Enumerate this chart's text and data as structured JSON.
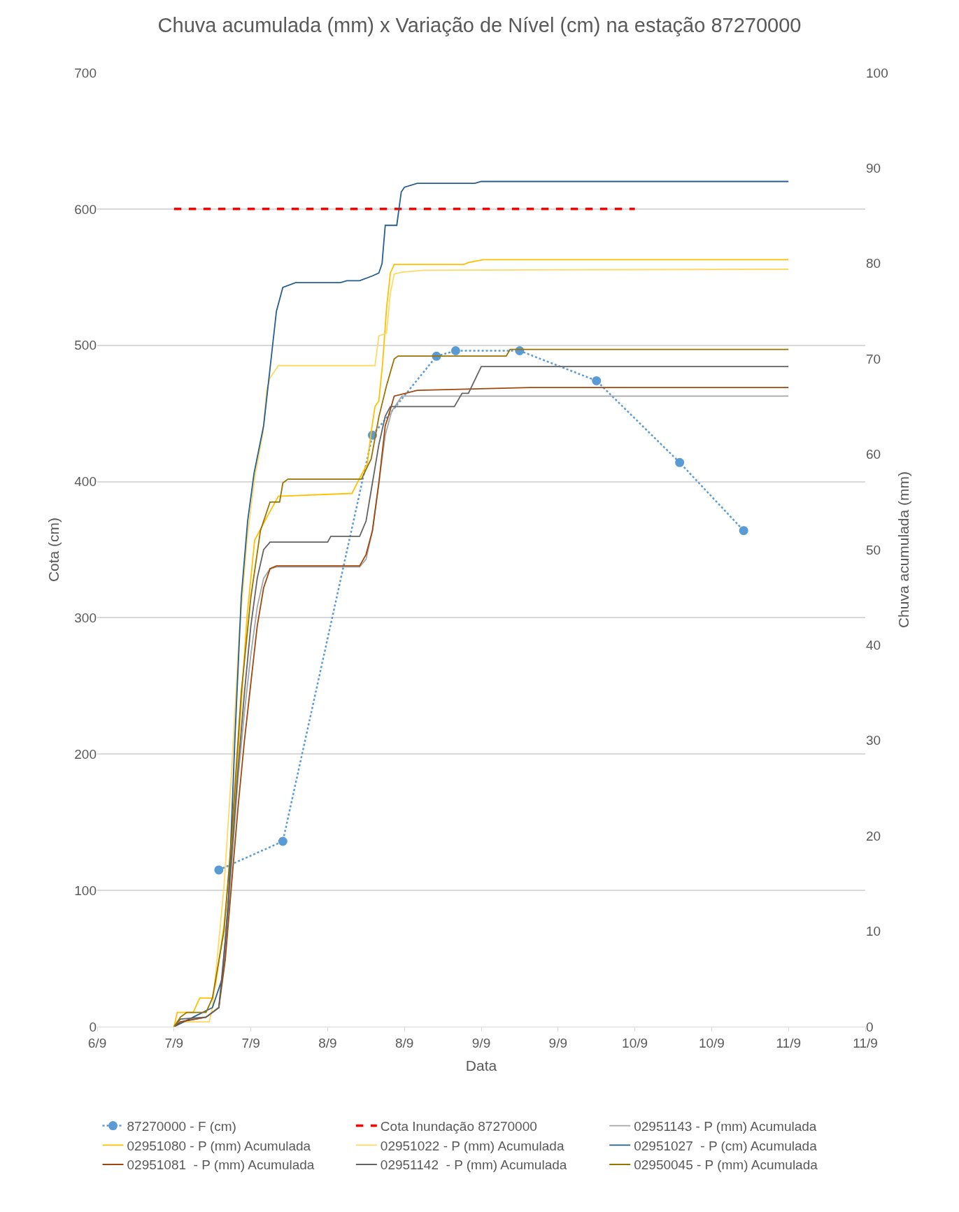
{
  "chart_data": {
    "type": "line",
    "title": "Chuva acumulada (mm) x Variação de Nível (cm) na estação 87270000",
    "xlabel": "Data",
    "ylabel": "Cota (cm)",
    "y2label": "Chuva acumulada (mm)",
    "xlim": [
      "--09-06T12:00",
      "--09-11T12:00"
    ],
    "xticks": [
      {
        "value": "--09-06T12:00",
        "label": "6/9"
      },
      {
        "value": "--09-07T00:00",
        "label": "7/9"
      },
      {
        "value": "--09-07T12:00",
        "label": "7/9"
      },
      {
        "value": "--09-08T00:00",
        "label": "8/9"
      },
      {
        "value": "--09-08T12:00",
        "label": "8/9"
      },
      {
        "value": "--09-09T00:00",
        "label": "9/9"
      },
      {
        "value": "--09-09T12:00",
        "label": "9/9"
      },
      {
        "value": "--09-10T00:00",
        "label": "10/9"
      },
      {
        "value": "--09-10T12:00",
        "label": "10/9"
      },
      {
        "value": "--09-11T00:00",
        "label": "11/9"
      },
      {
        "value": "--09-11T12:00",
        "label": "11/9"
      }
    ],
    "ylim": [
      0,
      700
    ],
    "yticks": [
      0,
      100,
      200,
      300,
      400,
      500,
      600,
      700
    ],
    "y2lim": [
      0,
      100
    ],
    "y2ticks": [
      0,
      10,
      20,
      30,
      40,
      50,
      60,
      70,
      80,
      90,
      100
    ],
    "grid": "y",
    "legend": "bottom",
    "series": [
      {
        "name": "87270000 - F (cm)",
        "color": "#5b9bd5",
        "line_style": "dotted",
        "marker": "circle",
        "x": [
          "--09-07T07:00",
          "--09-07T17:00",
          "--09-08T07:00",
          "--09-08T17:00",
          "--09-08T20:00",
          "--09-09T06:00",
          "--09-09T18:00",
          "--09-10T07:00",
          "--09-10T17:00"
        ],
        "values": [
          115,
          136,
          434,
          492,
          496,
          496,
          474,
          414,
          364
        ]
      },
      {
        "name": "Cota Inundação 87270000",
        "color": "#ff0000",
        "line_style": "dashed",
        "x": [
          "--09-07T00:00",
          "--09-10T00:00"
        ],
        "values": [
          600,
          600
        ]
      },
      {
        "name": "02951143 - P (mm) Acumulada",
        "color": "#a5a5a5",
        "axis": "y2",
        "x": [
          "--09-07T00:00",
          "--09-07T01:00",
          "--09-07T05:00",
          "--09-07T07:00",
          "--09-07T08:00",
          "--09-07T09:00",
          "--09-07T10:00",
          "--09-07T11:00",
          "--09-07T12:00",
          "--09-07T13:00",
          "--09-07T14:00",
          "--09-07T15:00",
          "--09-07T16:00",
          "--09-08T05:00",
          "--09-08T06:00",
          "--09-08T07:00",
          "--09-08T08:00",
          "--09-08T09:00",
          "--09-08T10:00",
          "--09-08T11:36",
          "--09-11T00:00"
        ],
        "values": [
          0,
          0.5,
          1,
          2,
          8,
          17,
          26,
          33,
          39,
          44,
          47,
          48,
          48.2,
          48.2,
          49,
          52,
          57,
          62,
          64.5,
          66.1,
          66.1
        ]
      },
      {
        "name": "02951080 - P (mm) Acumulada",
        "color": "#ffc000",
        "axis": "y2",
        "x": [
          "--09-07T00:00",
          "--09-07T00:30",
          "--09-07T03:00",
          "--09-07T04:00",
          "--09-07T06:00",
          "--09-07T06:30",
          "--09-07T07:48",
          "--09-07T09:00",
          "--09-07T10:12",
          "--09-07T11:24",
          "--09-07T12:36",
          "--09-07T14:30",
          "--09-07T16:18",
          "--09-08T03:48",
          "--09-08T05:00",
          "--09-08T06:12",
          "--09-08T06:48",
          "--09-08T07:24",
          "--09-08T08:00",
          "--09-08T08:36",
          "--09-08T09:12",
          "--09-08T09:48",
          "--09-08T10:24",
          "--09-08T21:18",
          "--09-08T22:00",
          "--09-09T00:18",
          "--09-11T00:00"
        ],
        "values": [
          0,
          1.5,
          1.5,
          3,
          3,
          4.5,
          10.6,
          18.7,
          30.8,
          43,
          51,
          53.4,
          55.6,
          55.9,
          57.5,
          59,
          62.3,
          65,
          65.6,
          69.6,
          75.3,
          79,
          79.9,
          79.9,
          80.1,
          80.4,
          80.4
        ]
      },
      {
        "name": "02951022 - P (mm) Acumulada",
        "color": "#ffd966",
        "axis": "y2",
        "x": [
          "--09-07T00:00",
          "--09-07T01:00",
          "--09-07T05:30",
          "--09-07T06:00",
          "--09-07T07:48",
          "--09-07T09:00",
          "--09-07T10:12",
          "--09-07T11:24",
          "--09-07T12:36",
          "--09-07T13:54",
          "--09-07T14:30",
          "--09-07T15:00",
          "--09-07T16:18",
          "--09-08T07:24",
          "--09-08T08:00",
          "--09-08T09:12",
          "--09-08T09:48",
          "--09-08T10:24",
          "--09-08T11:36",
          "--09-08T15:12",
          "--09-11T00:00"
        ],
        "values": [
          0,
          0.5,
          0.5,
          2,
          14.6,
          26.8,
          41.3,
          51,
          57.5,
          62.3,
          66.8,
          68,
          69.3,
          69.3,
          72.4,
          72.7,
          76.9,
          78.9,
          79.1,
          79.3,
          79.4
        ]
      },
      {
        "name": "02951027  - P (cm) Acumulada",
        "color": "#255e91",
        "axis": "y2",
        "x": [
          "--09-07T00:00",
          "--09-07T03:00",
          "--09-07T06:00",
          "--09-07T07:30",
          "--09-07T08:30",
          "--09-07T09:30",
          "--09-07T10:30",
          "--09-07T11:30",
          "--09-07T12:30",
          "--09-07T14:00",
          "--09-07T15:00",
          "--09-07T16:00",
          "--09-07T17:00",
          "--09-07T19:00",
          "--09-08T02:00",
          "--09-08T03:00",
          "--09-08T05:00",
          "--09-08T07:00",
          "--09-08T08:00",
          "--09-08T08:30",
          "--09-08T09:00",
          "--09-08T10:48",
          "--09-08T11:30",
          "--09-08T12:00",
          "--09-08T14:00",
          "--09-08T23:00",
          "--09-09T00:00",
          "--09-11T00:00"
        ],
        "values": [
          0,
          1,
          2,
          5,
          13,
          30,
          45,
          53,
          58,
          63,
          69,
          75,
          77.5,
          78,
          78,
          78.2,
          78.2,
          78.7,
          79,
          80,
          84,
          84,
          87.5,
          88,
          88.4,
          88.4,
          88.6,
          88.6
        ]
      },
      {
        "name": "02951081  - P (mm) Acumulada",
        "color": "#9e480e",
        "axis": "y2",
        "x": [
          "--09-07T00:00",
          "--09-07T01:00",
          "--09-07T05:00",
          "--09-07T07:00",
          "--09-07T08:00",
          "--09-07T09:00",
          "--09-07T10:00",
          "--09-07T11:00",
          "--09-07T12:00",
          "--09-07T13:00",
          "--09-07T14:00",
          "--09-07T15:00",
          "--09-07T16:00",
          "--09-08T05:00",
          "--09-08T06:00",
          "--09-08T07:00",
          "--09-08T08:00",
          "--09-08T09:00",
          "--09-08T09:30",
          "--09-08T10:24",
          "--09-08T14:00",
          "--09-09T07:36",
          "--09-11T00:00"
        ],
        "values": [
          0,
          0.5,
          1,
          2,
          7,
          15,
          23,
          30,
          36,
          42,
          46,
          48,
          48.3,
          48.3,
          49.5,
          52,
          57,
          63,
          64,
          66.1,
          66.7,
          67,
          67
        ]
      },
      {
        "name": "02951142  - P (mm) Acumulada",
        "color": "#636363",
        "axis": "y2",
        "x": [
          "--09-07T00:00",
          "--09-07T01:00",
          "--09-07T05:00",
          "--09-07T07:00",
          "--09-07T08:00",
          "--09-07T09:00",
          "--09-07T10:00",
          "--09-07T11:00",
          "--09-07T12:00",
          "--09-07T13:00",
          "--09-07T14:00",
          "--09-07T15:00",
          "--09-08T00:00",
          "--09-08T00:30",
          "--09-08T05:00",
          "--09-08T06:00",
          "--09-08T07:00",
          "--09-08T08:00",
          "--09-08T09:00",
          "--09-08T09:48",
          "--09-08T19:48",
          "--09-08T21:00",
          "--09-08T22:00",
          "--09-09T00:00",
          "--09-11T00:00"
        ],
        "values": [
          0,
          0.8,
          1,
          2,
          9,
          18,
          27,
          35,
          42,
          47,
          50,
          50.8,
          50.8,
          51.4,
          51.4,
          53,
          57,
          61,
          64,
          65,
          65,
          66.4,
          66.4,
          69.2,
          69.2
        ]
      },
      {
        "name": "02950045 - P (mm) Acumulada",
        "color": "#997300",
        "axis": "y2",
        "x": [
          "--09-07T00:00",
          "--09-07T01:00",
          "--09-07T02:00",
          "--09-07T05:00",
          "--09-07T06:00",
          "--09-07T07:48",
          "--09-07T09:00",
          "--09-07T10:30",
          "--09-07T12:00",
          "--09-07T13:30",
          "--09-07T15:00",
          "--09-07T16:30",
          "--09-07T17:00",
          "--09-07T17:48",
          "--09-08T05:18",
          "--09-08T06:12",
          "--09-08T06:48",
          "--09-08T08:00",
          "--09-08T09:12",
          "--09-08T10:24",
          "--09-08T11:00",
          "--09-09T03:54",
          "--09-09T04:30",
          "--09-11T00:00"
        ],
        "values": [
          0,
          1,
          1.5,
          1.5,
          3,
          10,
          20,
          35,
          45,
          52,
          55,
          55,
          57,
          57.4,
          57.4,
          58.7,
          59.5,
          63.9,
          67.2,
          70,
          70.3,
          70.3,
          71,
          71
        ]
      }
    ]
  }
}
